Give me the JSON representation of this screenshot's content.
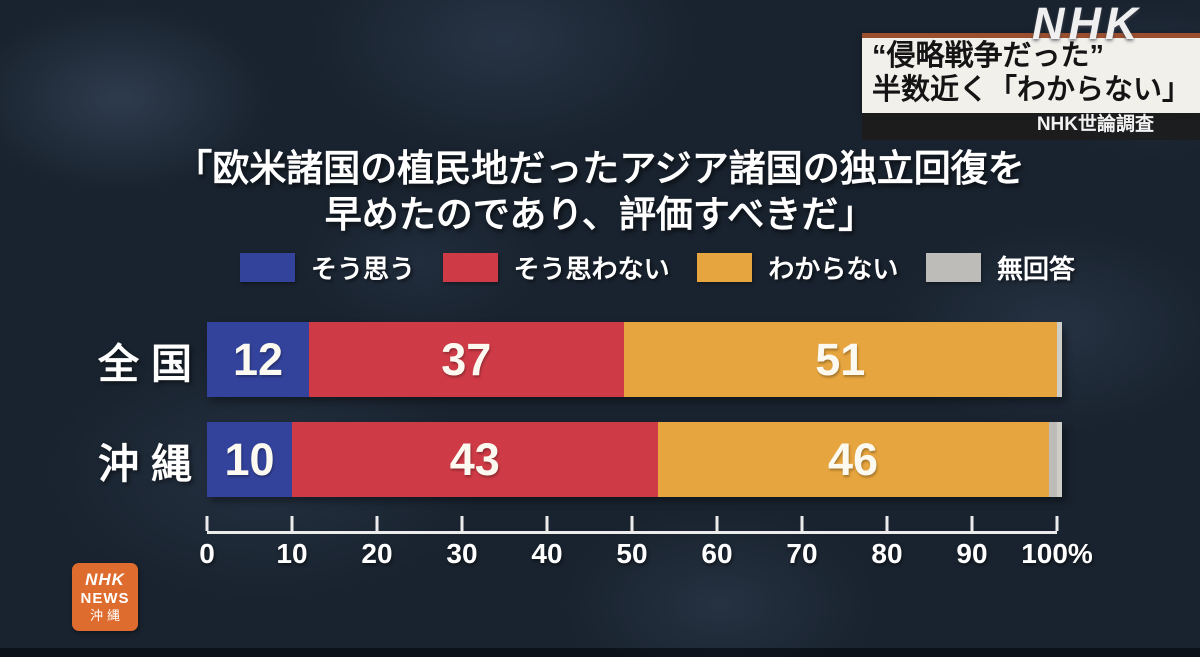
{
  "watermark": {
    "logo": "NHK"
  },
  "headline": {
    "line1": "“侵略戦争だった”",
    "line2": "半数近く「わからない」",
    "source": "NHK世論調査"
  },
  "question": {
    "line1": "「欧米諸国の植民地だったアジア諸国の独立回復を",
    "line2": "早めたのであり、評価すべきだ」"
  },
  "chart_data": {
    "type": "bar",
    "stacked": true,
    "orientation": "horizontal",
    "unit": "%",
    "categories": [
      "全国",
      "沖縄"
    ],
    "series": [
      {
        "name": "そう思う",
        "color": "#33439b",
        "values": [
          12,
          10
        ]
      },
      {
        "name": "そう思わない",
        "color": "#ce3b46",
        "values": [
          37,
          43
        ]
      },
      {
        "name": "わからない",
        "color": "#e6a53e",
        "values": [
          51,
          46
        ]
      },
      {
        "name": "無回答",
        "color": "#bdbcb8",
        "values": [
          0,
          1
        ]
      }
    ],
    "xlim": [
      0,
      100
    ],
    "x_tick_labels": [
      "0",
      "10",
      "20",
      "30",
      "40",
      "50",
      "60",
      "70",
      "80",
      "90",
      "100%"
    ],
    "legend_position": "top",
    "grid": false
  },
  "station_badge": {
    "line1": "NHK",
    "line2": "NEWS",
    "line3": "沖縄"
  },
  "colors": {
    "background": "#19232f",
    "headline_border": "#9c4f2e",
    "badge_bg": "#de6c2e"
  }
}
